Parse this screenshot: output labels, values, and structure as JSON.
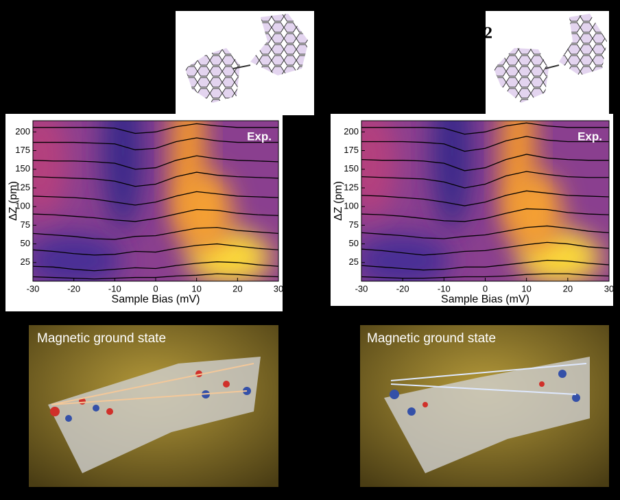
{
  "chart_data": [
    {
      "type": "line",
      "title": "Exp.",
      "x_label": "Sample Bias (mV)",
      "y_label": "ΔZ (pm)",
      "x": [
        -30,
        -25,
        -20,
        -15,
        -10,
        -5,
        0,
        5,
        10,
        15,
        20,
        25,
        30
      ],
      "series": [
        {
          "color": "#000000",
          "values": [
            6,
            5,
            4,
            3,
            4,
            5,
            5,
            7,
            8,
            10,
            9,
            7,
            6
          ]
        },
        {
          "color": "#000000",
          "values": [
            20,
            19,
            16,
            14,
            16,
            18,
            17,
            21,
            24,
            26,
            25,
            22,
            20
          ]
        },
        {
          "color": "#000000",
          "values": [
            42,
            40,
            37,
            35,
            36,
            40,
            39,
            44,
            48,
            50,
            47,
            44,
            42
          ]
        },
        {
          "color": "#000000",
          "values": [
            64,
            62,
            60,
            57,
            56,
            60,
            61,
            66,
            71,
            72,
            68,
            66,
            64
          ]
        },
        {
          "color": "#000000",
          "values": [
            90,
            89,
            87,
            85,
            82,
            80,
            84,
            90,
            96,
            95,
            91,
            89,
            88
          ]
        },
        {
          "color": "#000000",
          "values": [
            114,
            113,
            112,
            110,
            106,
            102,
            106,
            114,
            120,
            117,
            114,
            113,
            112
          ]
        },
        {
          "color": "#000000",
          "values": [
            140,
            139,
            138,
            137,
            134,
            127,
            130,
            140,
            146,
            142,
            140,
            139,
            138
          ]
        },
        {
          "color": "#000000",
          "values": [
            162,
            161,
            161,
            160,
            158,
            150,
            152,
            162,
            168,
            164,
            162,
            161,
            160
          ]
        },
        {
          "color": "#000000",
          "values": [
            186,
            186,
            186,
            185,
            184,
            176,
            178,
            187,
            192,
            188,
            186,
            186,
            186
          ]
        },
        {
          "color": "#000000",
          "values": [
            206,
            206,
            206,
            206,
            205,
            198,
            200,
            207,
            211,
            208,
            206,
            206,
            206
          ]
        }
      ],
      "xlim": [
        -30,
        30
      ],
      "ylim": [
        0,
        215
      ],
      "xticks": [
        -30,
        -20,
        -10,
        0,
        10,
        20,
        30
      ],
      "yticks": [
        25,
        50,
        75,
        100,
        125,
        150,
        175,
        200
      ]
    },
    {
      "type": "line",
      "title": "Exp.",
      "x_label": "Sample Bias (mV)",
      "y_label": "ΔZ (pm)",
      "x": [
        -30,
        -25,
        -20,
        -15,
        -10,
        -5,
        0,
        5,
        10,
        15,
        20,
        25,
        30
      ],
      "series": [
        {
          "color": "#000000",
          "values": [
            6,
            5,
            4,
            4,
            5,
            6,
            6,
            7,
            9,
            10,
            10,
            8,
            7
          ]
        },
        {
          "color": "#000000",
          "values": [
            21,
            19,
            17,
            15,
            16,
            19,
            19,
            22,
            25,
            28,
            27,
            24,
            22
          ]
        },
        {
          "color": "#000000",
          "values": [
            43,
            41,
            38,
            35,
            37,
            40,
            41,
            45,
            49,
            52,
            50,
            46,
            44
          ]
        },
        {
          "color": "#000000",
          "values": [
            65,
            63,
            61,
            58,
            57,
            60,
            62,
            67,
            72,
            74,
            71,
            67,
            65
          ]
        },
        {
          "color": "#000000",
          "values": [
            90,
            89,
            87,
            84,
            81,
            80,
            84,
            91,
            97,
            96,
            92,
            90,
            89
          ]
        },
        {
          "color": "#000000",
          "values": [
            115,
            114,
            112,
            110,
            106,
            101,
            106,
            115,
            121,
            118,
            115,
            114,
            113
          ]
        },
        {
          "color": "#000000",
          "values": [
            140,
            139,
            138,
            137,
            133,
            125,
            130,
            141,
            147,
            143,
            140,
            139,
            139
          ]
        },
        {
          "color": "#000000",
          "values": [
            163,
            162,
            162,
            161,
            158,
            148,
            152,
            163,
            170,
            165,
            163,
            162,
            162
          ]
        },
        {
          "color": "#000000",
          "values": [
            187,
            187,
            187,
            186,
            184,
            174,
            178,
            188,
            194,
            189,
            187,
            187,
            187
          ]
        },
        {
          "color": "#000000",
          "values": [
            206,
            206,
            206,
            206,
            205,
            197,
            200,
            208,
            212,
            208,
            206,
            206,
            206
          ]
        }
      ],
      "xlim": [
        -30,
        30
      ],
      "ylim": [
        0,
        215
      ],
      "xticks": [
        -30,
        -20,
        -10,
        0,
        10,
        20,
        30
      ],
      "yticks": [
        25,
        50,
        75,
        100,
        125,
        150,
        175,
        200
      ]
    }
  ],
  "fragment_label": "2",
  "panels": [
    {
      "caption": "Magnetic ground state"
    },
    {
      "caption": "Magnetic ground state"
    }
  ]
}
